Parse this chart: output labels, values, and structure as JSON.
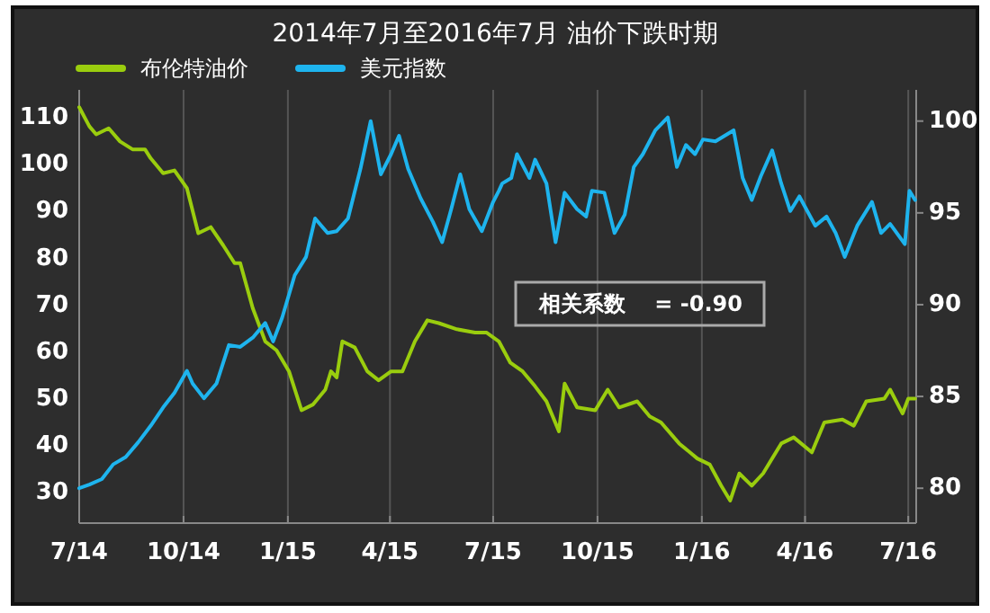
{
  "chart_data": {
    "type": "line",
    "title": "2014年7月至2016年7月 油价下跌时期",
    "grid": "x",
    "legend": "top left",
    "xlim": [
      "2014-07-01",
      "2016-07-08"
    ],
    "xticks": [
      {
        "value": "2014-07-01",
        "label": "7/14"
      },
      {
        "value": "2014-10-01",
        "label": "10/14"
      },
      {
        "value": "2015-01-01",
        "label": "1/15"
      },
      {
        "value": "2015-04-01",
        "label": "4/15"
      },
      {
        "value": "2015-07-01",
        "label": "7/15"
      },
      {
        "value": "2015-10-01",
        "label": "10/15"
      },
      {
        "value": "2016-01-01",
        "label": "1/16"
      },
      {
        "value": "2016-04-01",
        "label": "4/16"
      },
      {
        "value": "2016-07-01",
        "label": "7/16"
      }
    ],
    "ylim": [
      23.5,
      116
    ],
    "yticks": [
      30,
      40,
      50,
      60,
      70,
      80,
      90,
      100,
      110
    ],
    "y2lim": [
      78.1,
      101.7
    ],
    "y2ticks": [
      80,
      85,
      90,
      95,
      100
    ],
    "annotations": [
      "相关系数　 = -0.90"
    ],
    "series": [
      {
        "name": "布伦特油价",
        "color": "#9acd0e",
        "x": [
          "2014-07-01",
          "2014-07-10",
          "2014-07-16",
          "2014-07-27",
          "2014-08-06",
          "2014-08-17",
          "2014-08-28",
          "2014-09-02",
          "2014-09-13",
          "2014-09-23",
          "2014-10-04",
          "2014-10-14",
          "2014-10-25",
          "2014-11-05",
          "2014-11-15",
          "2014-11-20",
          "2014-12-01",
          "2014-12-12",
          "2014-12-22",
          "2015-01-02",
          "2015-01-13",
          "2015-01-23",
          "2015-02-03",
          "2015-02-08",
          "2015-02-13",
          "2015-02-18",
          "2015-03-01",
          "2015-03-12",
          "2015-03-22",
          "2015-04-02",
          "2015-04-12",
          "2015-04-23",
          "2015-05-04",
          "2015-05-14",
          "2015-05-30",
          "2015-06-15",
          "2015-06-25",
          "2015-07-06",
          "2015-07-16",
          "2015-07-27",
          "2015-08-07",
          "2015-08-17",
          "2015-08-28",
          "2015-09-02",
          "2015-09-13",
          "2015-09-29",
          "2015-10-10",
          "2015-10-20",
          "2015-11-05",
          "2015-11-16",
          "2015-11-26",
          "2015-12-12",
          "2015-12-28",
          "2016-01-08",
          "2016-01-18",
          "2016-01-26",
          "2016-02-03",
          "2016-02-14",
          "2016-02-24",
          "2016-03-11",
          "2016-03-22",
          "2016-04-07",
          "2016-04-18",
          "2016-05-04",
          "2016-05-14",
          "2016-05-25",
          "2016-06-10",
          "2016-06-15",
          "2016-06-26",
          "2016-07-01",
          "2016-07-07"
        ],
        "values": [
          112.3,
          108.2,
          106.5,
          107.8,
          105,
          103.3,
          103.3,
          101.4,
          98.2,
          98.8,
          95,
          85.4,
          86.7,
          82.8,
          79,
          79,
          69.4,
          62.3,
          60.4,
          55.9,
          47.6,
          48.8,
          52,
          55.9,
          54.6,
          62.3,
          61,
          55.9,
          54,
          55.9,
          55.9,
          62.3,
          66.8,
          66.2,
          64.9,
          64.2,
          64.2,
          62.3,
          57.8,
          55.9,
          52.7,
          49.5,
          43.1,
          53.3,
          48.2,
          47.6,
          52,
          48.2,
          49.5,
          46.3,
          45,
          40.5,
          37.3,
          36,
          31.5,
          28.3,
          34.1,
          31.5,
          34.1,
          40.5,
          41.8,
          38.6,
          45,
          45.6,
          44.3,
          49.5,
          50.1,
          52,
          46.9,
          50.1,
          50.1
        ]
      },
      {
        "name": "美元指数",
        "color": "#1eb4ee",
        "axis": "y2",
        "x": [
          "2014-07-01",
          "2014-07-10",
          "2014-07-21",
          "2014-07-31",
          "2014-08-11",
          "2014-08-22",
          "2014-09-02",
          "2014-09-13",
          "2014-09-23",
          "2014-10-04",
          "2014-10-09",
          "2014-10-19",
          "2014-10-30",
          "2014-11-10",
          "2014-11-20",
          "2014-12-01",
          "2014-12-12",
          "2014-12-19",
          "2014-12-27",
          "2015-01-07",
          "2015-01-17",
          "2015-01-25",
          "2015-02-05",
          "2015-02-13",
          "2015-02-23",
          "2015-03-06",
          "2015-03-15",
          "2015-03-24",
          "2015-04-02",
          "2015-04-09",
          "2015-04-17",
          "2015-04-28",
          "2015-05-09",
          "2015-05-17",
          "2015-05-25",
          "2015-06-02",
          "2015-06-10",
          "2015-06-21",
          "2015-07-01",
          "2015-07-06",
          "2015-07-09",
          "2015-07-17",
          "2015-07-22",
          "2015-08-02",
          "2015-08-07",
          "2015-08-17",
          "2015-08-25",
          "2015-09-02",
          "2015-09-13",
          "2015-09-21",
          "2015-09-26",
          "2015-10-07",
          "2015-10-16",
          "2015-10-25",
          "2015-11-02",
          "2015-11-10",
          "2015-11-21",
          "2015-12-02",
          "2015-12-10",
          "2015-12-18",
          "2015-12-26",
          "2016-01-02",
          "2016-01-13",
          "2016-01-29",
          "2016-02-06",
          "2016-02-14",
          "2016-02-22",
          "2016-03-03",
          "2016-03-11",
          "2016-03-19",
          "2016-03-27",
          "2016-04-10",
          "2016-04-20",
          "2016-04-28",
          "2016-05-06",
          "2016-05-17",
          "2016-05-30",
          "2016-06-07",
          "2016-06-15",
          "2016-06-28",
          "2016-07-02",
          "2016-07-07"
        ],
        "values": [
          80,
          80.2,
          80.5,
          81.3,
          81.7,
          82.5,
          83.4,
          84.4,
          85.2,
          86.4,
          85.7,
          84.9,
          85.7,
          87.8,
          87.7,
          88.2,
          89,
          88,
          89.3,
          91.6,
          92.6,
          94.7,
          93.9,
          94,
          94.7,
          97.4,
          100,
          97.1,
          98.2,
          99.2,
          97.4,
          95.8,
          94.5,
          93.4,
          95.2,
          97.1,
          95.2,
          94,
          95.6,
          96.2,
          96.6,
          96.9,
          98.2,
          96.9,
          97.9,
          96.6,
          93.4,
          96.1,
          95.2,
          94.8,
          96.2,
          96.1,
          93.9,
          94.9,
          97.5,
          98.2,
          99.5,
          100.2,
          97.5,
          98.7,
          98.2,
          99,
          98.9,
          99.5,
          96.9,
          95.7,
          97,
          98.4,
          96.6,
          95.1,
          95.9,
          94.3,
          94.8,
          93.9,
          92.6,
          94.3,
          95.6,
          93.9,
          94.4,
          93.3,
          96.2,
          95.7
        ]
      }
    ]
  }
}
